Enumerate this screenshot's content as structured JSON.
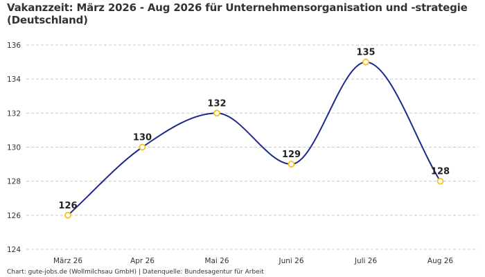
{
  "chart_data": {
    "type": "line",
    "title": "Vakanzzeit: März 2026 - Aug 2026 für Unternehmensorganisation und -strategie (Deutschland)",
    "categories": [
      "März 26",
      "Apr 26",
      "Mai 26",
      "Juni 26",
      "Juli 26",
      "Aug 26"
    ],
    "series": [
      {
        "values": [
          126,
          130,
          132,
          129,
          135,
          128
        ]
      }
    ],
    "data_labels": [
      "126",
      "130",
      "132",
      "129",
      "135",
      "128"
    ],
    "y_ticks": [
      "124",
      "126",
      "128",
      "130",
      "132",
      "134",
      "136"
    ],
    "xlabel": "",
    "ylabel": "",
    "ylim": [
      124,
      136
    ],
    "grid": "horizontal dashed",
    "legend": "none",
    "colors": {
      "line": "#1b2a8a",
      "marker_stroke": "#f2c318",
      "marker_fill": "#ffffff",
      "grid": "#c8c8c8"
    }
  },
  "footer": {
    "source": "Chart: gute-jobs.de (Wollmilchsau GmbH) | Datenquelle: Bundesagentur für Arbeit"
  }
}
